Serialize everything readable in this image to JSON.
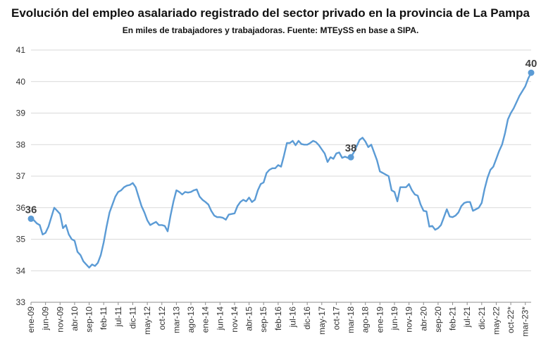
{
  "title": "Evolución del empleo asalariado registrado del sector privado en la provincia de La Pampa",
  "subtitle": "En miles de trabajadores y trabajadoras. Fuente: MTEySS en base a SIPA.",
  "colors": {
    "line": "#5b9bd5",
    "grid": "#d9d9d9",
    "axis": "#8c8c8c"
  },
  "chart_data": {
    "type": "line",
    "title": "Evolución del empleo asalariado registrado del sector privado en la provincia de La Pampa",
    "subtitle": "En miles de trabajadores y trabajadoras. Fuente: MTEySS en base a SIPA.",
    "ylim": [
      33,
      41
    ],
    "yticks": [
      33,
      34,
      35,
      36,
      37,
      38,
      39,
      40,
      41
    ],
    "grid": true,
    "x_start": "ene-09",
    "x_tick_labels": [
      "ene-09",
      "jun-09",
      "nov-09",
      "abr-10",
      "sep-10",
      "feb-11",
      "jul-11",
      "dic-11",
      "may-12",
      "oct-12",
      "mar-13",
      "ago-13",
      "ene-14",
      "jun-14",
      "nov-14",
      "abr-15",
      "sep-15",
      "feb-16",
      "jul-16",
      "dic-16",
      "may-17",
      "oct-17",
      "mar-18",
      "ago-18",
      "ene-19",
      "jun-19",
      "nov-19",
      "abr-20",
      "sep-20",
      "feb-21",
      "jul-21",
      "dic-21",
      "may-22",
      "oct-22*",
      "mar-23*"
    ],
    "series": [
      {
        "values": [
          35.65,
          35.6,
          35.5,
          35.45,
          35.15,
          35.2,
          35.4,
          35.7,
          36.0,
          35.9,
          35.8,
          35.35,
          35.45,
          35.15,
          35.0,
          34.95,
          34.6,
          34.5,
          34.3,
          34.2,
          34.1,
          34.2,
          34.15,
          34.25,
          34.5,
          34.9,
          35.4,
          35.85,
          36.1,
          36.35,
          36.5,
          36.55,
          36.65,
          36.7,
          36.72,
          36.78,
          36.65,
          36.35,
          36.05,
          35.85,
          35.6,
          35.45,
          35.5,
          35.55,
          35.45,
          35.45,
          35.42,
          35.25,
          35.75,
          36.2,
          36.55,
          36.5,
          36.42,
          36.5,
          36.48,
          36.5,
          36.55,
          36.58,
          36.35,
          36.25,
          36.18,
          36.1,
          35.9,
          35.75,
          35.7,
          35.7,
          35.68,
          35.62,
          35.78,
          35.8,
          35.82,
          36.05,
          36.18,
          36.25,
          36.2,
          36.32,
          36.18,
          36.25,
          36.55,
          36.75,
          36.8,
          37.1,
          37.2,
          37.25,
          37.25,
          37.35,
          37.3,
          37.65,
          38.05,
          38.05,
          38.12,
          37.98,
          38.12,
          38.02,
          38.0,
          38.0,
          38.05,
          38.12,
          38.08,
          37.98,
          37.85,
          37.72,
          37.45,
          37.6,
          37.55,
          37.72,
          37.75,
          37.58,
          37.62,
          37.58,
          37.6,
          37.75,
          37.95,
          38.15,
          38.22,
          38.1,
          37.92,
          38.0,
          37.75,
          37.5,
          37.15,
          37.1,
          37.05,
          37.0,
          36.55,
          36.5,
          36.2,
          36.65,
          36.65,
          36.65,
          36.75,
          36.55,
          36.42,
          36.38,
          36.1,
          35.9,
          35.88,
          35.4,
          35.42,
          35.3,
          35.35,
          35.45,
          35.7,
          35.95,
          35.72,
          35.7,
          35.75,
          35.85,
          36.05,
          36.15,
          36.18,
          36.18,
          35.9,
          35.95,
          36.0,
          36.15,
          36.6,
          36.95,
          37.2,
          37.3,
          37.55,
          37.8,
          38.0,
          38.35,
          38.8,
          39.0,
          39.15,
          39.35,
          39.55,
          39.7,
          39.85,
          40.1,
          40.28
        ]
      }
    ],
    "data_labels": [
      {
        "x": "ene-09",
        "value": 36,
        "label": "36"
      },
      {
        "x": "mar-18",
        "value": 38,
        "label": "38"
      },
      {
        "x": "mar-23*",
        "value": 40,
        "label": "40"
      }
    ]
  }
}
